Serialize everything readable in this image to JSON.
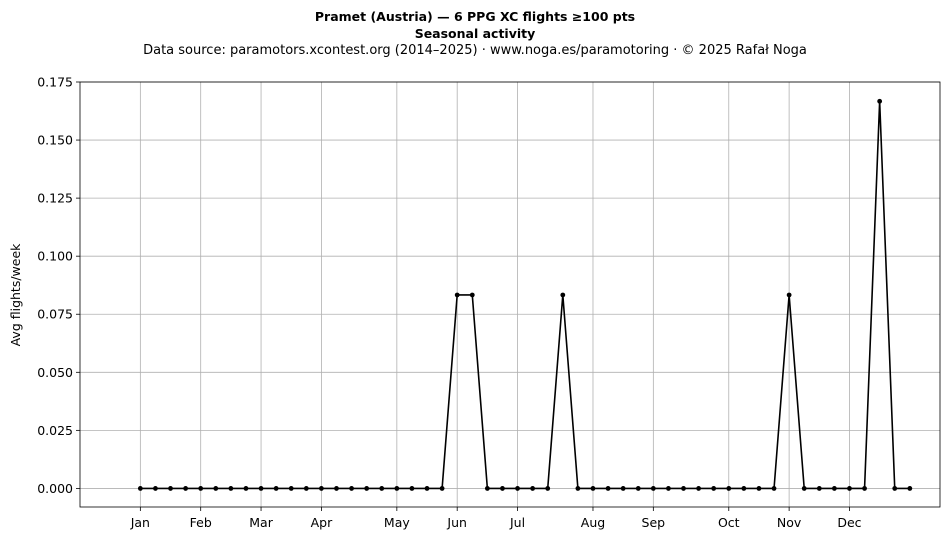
{
  "header": {
    "title": "Pramet (Austria)  —  6 PPG XC flights ≥100 pts",
    "subtitle": "Seasonal activity",
    "source": "Data source: paramotors.xcontest.org (2014–2025)  ·  www.noga.es/paramotoring  ·  © 2025 Rafał Noga"
  },
  "chart_data": {
    "type": "line",
    "title": "Pramet (Austria)  —  6 PPG XC flights ≥100 pts",
    "subtitle": "Seasonal activity",
    "xlabel": "",
    "ylabel": "Avg flights/week",
    "xlim": [
      -3,
      54
    ],
    "ylim": [
      -0.008,
      0.175
    ],
    "grid": true,
    "color": "#000000",
    "x_ticks": [
      {
        "week": 1,
        "label": "Jan"
      },
      {
        "week": 5,
        "label": "Feb"
      },
      {
        "week": 9,
        "label": "Mar"
      },
      {
        "week": 13,
        "label": "Apr"
      },
      {
        "week": 18,
        "label": "May"
      },
      {
        "week": 22,
        "label": "Jun"
      },
      {
        "week": 26,
        "label": "Jul"
      },
      {
        "week": 31,
        "label": "Aug"
      },
      {
        "week": 35,
        "label": "Sep"
      },
      {
        "week": 40,
        "label": "Oct"
      },
      {
        "week": 44,
        "label": "Nov"
      },
      {
        "week": 48,
        "label": "Dec"
      }
    ],
    "y_ticks": [
      0.0,
      0.025,
      0.05,
      0.075,
      0.1,
      0.125,
      0.15,
      0.175
    ],
    "y_tick_labels": [
      "0.000",
      "0.025",
      "0.050",
      "0.075",
      "0.100",
      "0.125",
      "0.150",
      "0.175"
    ],
    "series": [
      {
        "x": [
          1,
          2,
          3,
          4,
          5,
          6,
          7,
          8,
          9,
          10,
          11,
          12,
          13,
          14,
          15,
          16,
          17,
          18,
          19,
          20,
          21,
          22,
          23,
          24,
          25,
          26,
          27,
          28,
          29,
          30,
          31,
          32,
          33,
          34,
          35,
          36,
          37,
          38,
          39,
          40,
          41,
          42,
          43,
          44,
          45,
          46,
          47,
          48,
          49,
          50,
          51,
          52
        ],
        "values": [
          0,
          0,
          0,
          0,
          0,
          0,
          0,
          0,
          0,
          0,
          0,
          0,
          0,
          0,
          0,
          0,
          0,
          0,
          0,
          0,
          0,
          0.0833,
          0.0833,
          0,
          0,
          0,
          0,
          0,
          0.0833,
          0,
          0,
          0,
          0,
          0,
          0,
          0,
          0,
          0,
          0,
          0,
          0,
          0,
          0,
          0.0833,
          0,
          0,
          0,
          0,
          0,
          0.1667,
          0,
          0
        ]
      }
    ]
  }
}
